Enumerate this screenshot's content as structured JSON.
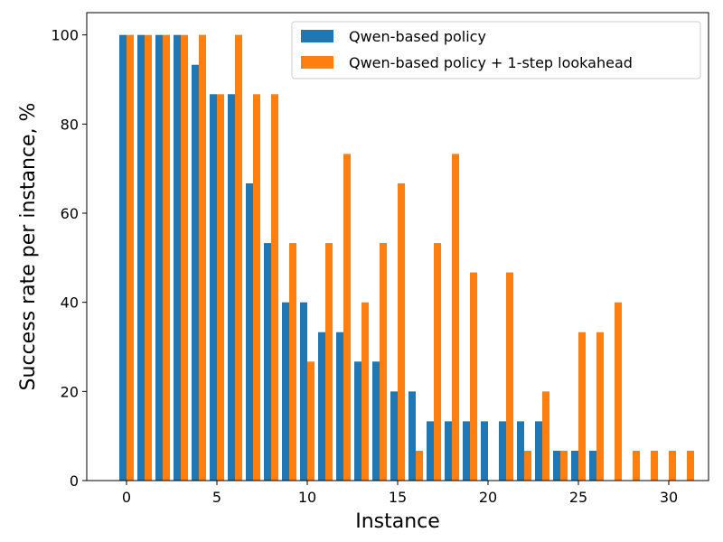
{
  "chart_data": {
    "type": "bar",
    "xlabel": "Instance",
    "ylabel": "Success rate per instance, %",
    "xlim": [
      -2.2,
      32.2
    ],
    "ylim": [
      0,
      105
    ],
    "xticks": [
      0,
      5,
      10,
      15,
      20,
      25,
      30
    ],
    "yticks": [
      0,
      20,
      40,
      60,
      80,
      100
    ],
    "grid": false,
    "legend_position": "top-right",
    "x": [
      0,
      1,
      2,
      3,
      4,
      5,
      6,
      7,
      8,
      9,
      10,
      11,
      12,
      13,
      14,
      15,
      16,
      17,
      18,
      19,
      20,
      21,
      22,
      23,
      24,
      25,
      26,
      27,
      28,
      29,
      30,
      31
    ],
    "series": [
      {
        "name": "Qwen-based policy",
        "color": "#1f77b4",
        "values": [
          100,
          100,
          100,
          100,
          93.3,
          86.7,
          86.7,
          66.7,
          53.3,
          40,
          40,
          33.3,
          33.3,
          26.7,
          26.7,
          20,
          20,
          13.3,
          13.3,
          13.3,
          13.3,
          13.3,
          13.3,
          13.3,
          6.7,
          6.7,
          6.7,
          0,
          0,
          0,
          0,
          0
        ]
      },
      {
        "name": "Qwen-based policy + 1-step lookahead",
        "color": "#ff7f0e",
        "values": [
          100,
          100,
          100,
          100,
          100,
          86.7,
          100,
          86.7,
          86.7,
          53.3,
          26.7,
          53.3,
          73.3,
          40,
          53.3,
          66.7,
          6.7,
          53.3,
          73.3,
          46.7,
          0,
          46.7,
          6.7,
          20,
          6.7,
          33.3,
          33.3,
          40,
          6.7,
          6.7,
          6.7,
          6.7
        ]
      }
    ]
  }
}
